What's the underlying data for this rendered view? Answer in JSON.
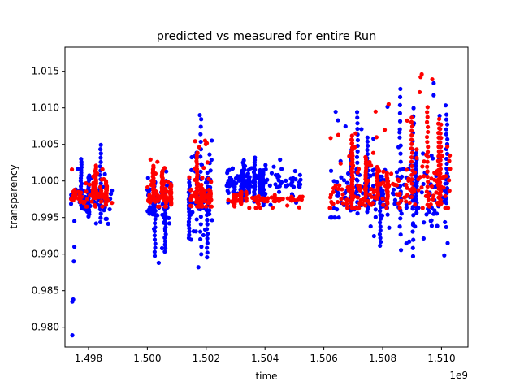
{
  "chart_data": {
    "type": "scatter",
    "title": "predicted vs measured for entire Run",
    "xlabel": "time",
    "ylabel": "transparency",
    "x_offset_label": "1e9",
    "xlim": [
      1.4972,
      1.5109
    ],
    "ylim": [
      0.9773,
      1.0183
    ],
    "x_ticks": [
      1.498,
      1.5,
      1.502,
      1.504,
      1.506,
      1.508,
      1.51
    ],
    "x_tick_labels": [
      "1.498",
      "1.500",
      "1.502",
      "1.504",
      "1.506",
      "1.508",
      "1.510"
    ],
    "y_ticks": [
      0.98,
      0.985,
      0.99,
      0.995,
      1.0,
      1.005,
      1.01,
      1.015
    ],
    "y_tick_labels": [
      "0.980",
      "0.985",
      "0.990",
      "0.995",
      "1.000",
      "1.005",
      "1.010",
      "1.015"
    ],
    "grid": false,
    "series": [
      {
        "color": "#0000ff",
        "clusters": [
          {
            "x0": 1.4974,
            "x1": 1.4988,
            "ymin": 0.9935,
            "ymax": 1.005,
            "center": 0.9975
          },
          {
            "x0": 1.5,
            "x1": 1.5008,
            "ymin": 0.988,
            "ymax": 1.003,
            "center": 0.997
          },
          {
            "x0": 1.5014,
            "x1": 1.5022,
            "ymin": 0.9865,
            "ymax": 1.0098,
            "center": 0.9975
          },
          {
            "x0": 1.5027,
            "x1": 1.5035,
            "ymin": 0.997,
            "ymax": 1.003,
            "center": 1.0
          },
          {
            "x0": 1.5035,
            "x1": 1.5053,
            "ymin": 0.9965,
            "ymax": 1.0035,
            "center": 1.0
          },
          {
            "x0": 1.5062,
            "x1": 1.5075,
            "ymin": 0.995,
            "ymax": 1.012,
            "center": 0.998
          },
          {
            "x0": 1.5075,
            "x1": 1.509,
            "ymin": 0.9895,
            "ymax": 1.0155,
            "center": 0.9985
          },
          {
            "x0": 1.509,
            "x1": 1.5103,
            "ymin": 0.9855,
            "ymax": 1.016,
            "center": 0.9975
          }
        ],
        "outliers": [
          {
            "x": 1.49745,
            "y": 0.9789
          },
          {
            "x": 1.49748,
            "y": 0.9838
          },
          {
            "x": 1.49745,
            "y": 0.9835
          },
          {
            "x": 1.4975,
            "y": 0.989
          },
          {
            "x": 1.49752,
            "y": 0.991
          }
        ]
      },
      {
        "color": "#ff0000",
        "clusters": [
          {
            "x0": 1.4974,
            "x1": 1.4988,
            "ymin": 0.9965,
            "ymax": 1.003,
            "center": 0.9978
          },
          {
            "x0": 1.5,
            "x1": 1.5008,
            "ymin": 0.9965,
            "ymax": 1.003,
            "center": 0.9978
          },
          {
            "x0": 1.5014,
            "x1": 1.5022,
            "ymin": 0.9965,
            "ymax": 1.0058,
            "center": 0.998
          },
          {
            "x0": 1.5027,
            "x1": 1.5053,
            "ymin": 0.9963,
            "ymax": 0.9985,
            "center": 0.9975
          },
          {
            "x0": 1.5062,
            "x1": 1.5075,
            "ymin": 0.9963,
            "ymax": 1.0075,
            "center": 0.998
          },
          {
            "x0": 1.5075,
            "x1": 1.509,
            "ymin": 0.9963,
            "ymax": 1.011,
            "center": 0.9985
          },
          {
            "x0": 1.509,
            "x1": 1.5103,
            "ymin": 0.9963,
            "ymax": 1.0165,
            "center": 0.999
          }
        ],
        "outliers": []
      }
    ]
  }
}
